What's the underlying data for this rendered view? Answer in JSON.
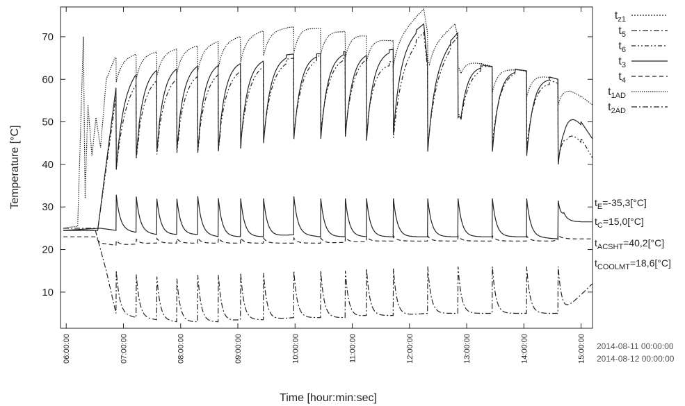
{
  "chart_data": {
    "type": "line",
    "ylabel": "Temperature [°C]",
    "xlabel": "Time [hour:min:sec]",
    "ylim": [
      1.5,
      77
    ],
    "xlim_hours": [
      5.9,
      15.2
    ],
    "y_ticks": [
      10,
      20,
      30,
      40,
      50,
      60,
      70
    ],
    "x_ticks": [
      {
        "hour": 6,
        "label": "06:00:00"
      },
      {
        "hour": 7,
        "label": "07:00:00"
      },
      {
        "hour": 8,
        "label": "08:00:00"
      },
      {
        "hour": 9,
        "label": "09:00:00"
      },
      {
        "hour": 10,
        "label": "10:00:00"
      },
      {
        "hour": 11,
        "label": "11:00:00"
      },
      {
        "hour": 12,
        "label": "12:00:00"
      },
      {
        "hour": 13,
        "label": "13:00:00"
      },
      {
        "hour": 14,
        "label": "14:00:00"
      },
      {
        "hour": 15,
        "label": "15:00:00"
      }
    ],
    "grid": false,
    "legend_position": "outside top-right",
    "legend": [
      {
        "main": "t",
        "sub": "z1",
        "dash": "2,2"
      },
      {
        "main": "t",
        "sub": "5",
        "dash": "8,3,2,3"
      },
      {
        "main": "t",
        "sub": "6",
        "dash": "6,3,2,3,2,3"
      },
      {
        "main": "t",
        "sub": "3",
        "dash": ""
      },
      {
        "main": "t",
        "sub": "4",
        "dash": "6,4"
      },
      {
        "main": "t",
        "sub": "1AD",
        "dash": "1.5,1.5"
      },
      {
        "main": "t",
        "sub": "2AD",
        "dash": "8,3,2,3"
      }
    ],
    "annotations": [
      {
        "main": "t",
        "sub": "E",
        "rest": "=-35,3[°C]"
      },
      {
        "main": "t",
        "sub": "C",
        "rest": "=15,0[°C]"
      },
      {
        "main": "t",
        "sub": "ACSHT",
        "rest": "=40,2[°C]"
      },
      {
        "main": "t",
        "sub": "COOLMT",
        "rest": "=18,6[°C]"
      }
    ],
    "dates": [
      "2014-08-11 00:00:00",
      "2014-08-12 00:00:00"
    ],
    "draw_cycles_hours": [
      6.87,
      7.22,
      7.58,
      7.93,
      8.3,
      8.66,
      9.05,
      9.45,
      9.98,
      10.45,
      10.88,
      11.25,
      11.72,
      12.32,
      12.85,
      13.45,
      14.05,
      14.6
    ],
    "series": [
      {
        "name": "t1AD",
        "style": "1.5,1.5",
        "x": [
          5.95,
          6.2,
          6.3,
          6.33,
          6.38,
          6.45,
          6.52,
          6.6,
          6.7,
          6.85,
          7.2,
          7.55,
          8.3,
          9.0,
          9.45,
          10.1,
          11.0,
          11.7,
          12.25,
          12.35,
          12.8,
          12.9,
          13.45,
          14.0,
          14.6,
          15.2
        ],
        "y": [
          25,
          25.5,
          70,
          32,
          54,
          42,
          51,
          44,
          60,
          65,
          66,
          66.5,
          68,
          70,
          71.5,
          72.5,
          71,
          69,
          76.5,
          68,
          73,
          65,
          63,
          62,
          60,
          54
        ]
      },
      {
        "name": "t3",
        "style": "",
        "x": [
          5.95,
          6.55,
          6.87,
          7.2,
          7.55,
          8.3,
          9.05,
          9.45,
          10.0,
          10.45,
          10.85,
          11.25,
          11.7,
          12.25,
          12.32,
          12.85,
          12.9,
          13.45,
          14.05,
          14.6,
          14.7,
          15.2
        ],
        "y": [
          24.5,
          24.5,
          58,
          62,
          63,
          64,
          64.5,
          65,
          66,
          66,
          66.5,
          66.5,
          67,
          73,
          63,
          71,
          64,
          63,
          62,
          60,
          56,
          46
        ]
      },
      {
        "name": "t6",
        "style": "6,3,2,3,2,3",
        "x": [
          5.95,
          6.55,
          6.87,
          7.2,
          7.55,
          8.3,
          9.05,
          9.45,
          10.0,
          10.45,
          10.85,
          11.25,
          11.7,
          12.25,
          12.32,
          12.85,
          12.9,
          13.45,
          14.05,
          14.6,
          14.75,
          15.2
        ],
        "y": [
          24.5,
          24.5,
          56,
          60,
          61,
          62,
          63,
          64,
          65,
          65.5,
          65.5,
          66,
          64,
          71,
          62,
          70,
          63,
          63,
          62,
          59,
          52,
          41.5
        ]
      },
      {
        "name": "tC",
        "style": "",
        "x": [
          5.95,
          6.6,
          6.87,
          7.22,
          7.58,
          7.93,
          8.3,
          8.66,
          9.05,
          9.45,
          9.98,
          10.45,
          10.88,
          11.25,
          11.72,
          12.32,
          12.85,
          13.45,
          14.05,
          14.6,
          14.7,
          15.2
        ],
        "y": [
          24.5,
          25,
          24.5,
          24,
          23.5,
          23.5,
          23.5,
          23,
          23,
          23,
          23.5,
          23,
          23,
          23,
          23,
          23,
          23,
          23,
          23,
          22.5,
          26.5,
          26.5
        ]
      },
      {
        "name": "tACSHT",
        "style": "6,4",
        "x": [
          5.95,
          6.5,
          6.6,
          6.87,
          7.5,
          8.5,
          9.5,
          10.5,
          11.5,
          12.5,
          13.5,
          14.5,
          14.7,
          15.2
        ],
        "y": [
          23,
          23,
          21.5,
          21,
          21.5,
          21.5,
          21.5,
          21.5,
          22,
          22,
          22,
          22,
          22.5,
          22.5
        ]
      },
      {
        "name": "tCOOLMT",
        "style": "8,3,2,3",
        "x": [
          5.95,
          6.5,
          6.6,
          6.7,
          6.87,
          7.22,
          7.58,
          7.93,
          8.3,
          8.66,
          9.05,
          9.45,
          9.98,
          10.45,
          10.88,
          11.25,
          11.72,
          12.32,
          12.85,
          13.45,
          14.05,
          14.6,
          14.7,
          15.2
        ],
        "y": [
          25,
          25,
          20,
          15,
          5,
          4,
          3.5,
          3,
          3,
          3,
          3.5,
          3.5,
          4,
          4,
          4,
          4.5,
          4.5,
          5,
          5,
          5,
          5,
          5,
          5.5,
          12
        ]
      }
    ]
  }
}
